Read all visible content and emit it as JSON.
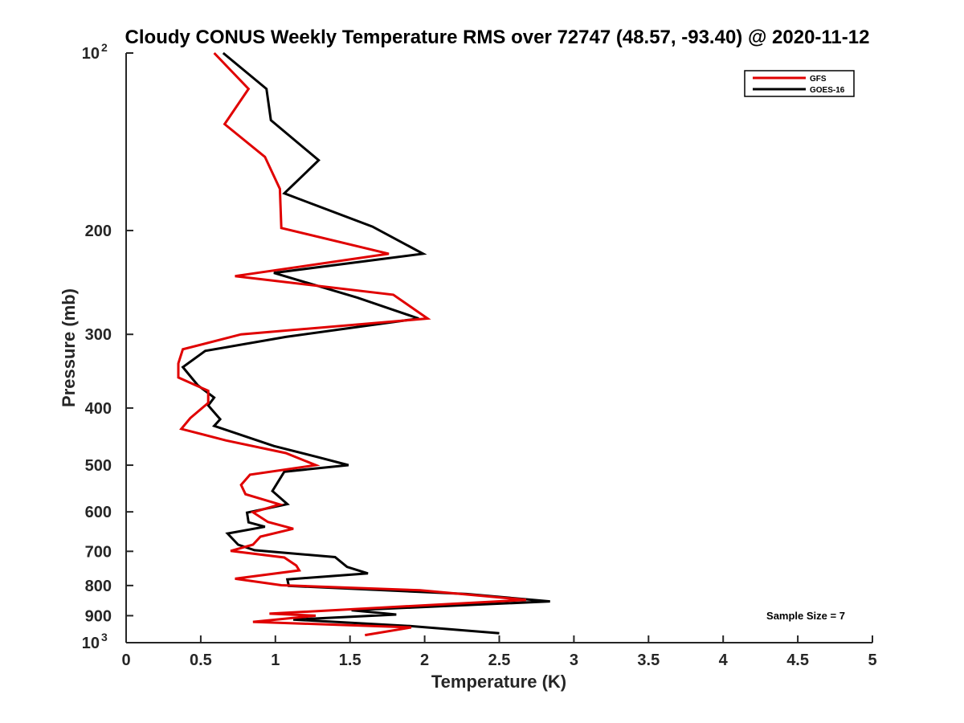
{
  "chart_data": {
    "type": "line",
    "title": "Cloudy CONUS Weekly Temperature RMS over 72747 (48.57, -93.40) @ 2020-11-12",
    "xlabel": "Temperature (K)",
    "ylabel": "Pressure (mb)",
    "xlim": [
      0,
      5
    ],
    "ylim": [
      100,
      1000
    ],
    "y_scale": "log",
    "y_reversed": true,
    "grid": false,
    "legend_position": "top-right",
    "annotation": "Sample Size = 7",
    "x_ticks": [
      "0",
      "0.5",
      "1",
      "1.5",
      "2",
      "2.5",
      "3",
      "3.5",
      "4",
      "4.5",
      "5"
    ],
    "y_ticks": [
      {
        "value": 100,
        "base": "10",
        "exp": "2"
      },
      {
        "value": 200,
        "label": "200"
      },
      {
        "value": 300,
        "label": "300"
      },
      {
        "value": 400,
        "label": "400"
      },
      {
        "value": 500,
        "label": "500"
      },
      {
        "value": 600,
        "label": "600"
      },
      {
        "value": 700,
        "label": "700"
      },
      {
        "value": 800,
        "label": "800"
      },
      {
        "value": 900,
        "label": "900"
      },
      {
        "value": 1000,
        "base": "10",
        "exp": "3"
      }
    ],
    "series": [
      {
        "name": "GFS",
        "color": "#e00000",
        "points": [
          [
            0.59,
            100
          ],
          [
            0.82,
            115
          ],
          [
            0.66,
            132
          ],
          [
            0.93,
            150
          ],
          [
            1.03,
            170
          ],
          [
            1.04,
            198
          ],
          [
            1.76,
            219
          ],
          [
            0.73,
            239
          ],
          [
            1.79,
            257
          ],
          [
            2.02,
            282
          ],
          [
            0.77,
            300
          ],
          [
            0.38,
            318
          ],
          [
            0.35,
            336
          ],
          [
            0.35,
            355
          ],
          [
            0.55,
            374
          ],
          [
            0.55,
            392
          ],
          [
            0.43,
            416
          ],
          [
            0.37,
            434
          ],
          [
            0.67,
            454
          ],
          [
            1.07,
            477
          ],
          [
            1.27,
            500
          ],
          [
            0.83,
            519
          ],
          [
            0.77,
            540
          ],
          [
            0.8,
            560
          ],
          [
            1.03,
            583
          ],
          [
            0.85,
            601
          ],
          [
            0.95,
            624
          ],
          [
            1.12,
            641
          ],
          [
            0.9,
            661
          ],
          [
            0.85,
            682
          ],
          [
            0.7,
            699
          ],
          [
            1.06,
            717
          ],
          [
            1.14,
            740
          ],
          [
            1.16,
            754
          ],
          [
            0.73,
            779
          ],
          [
            1.04,
            799
          ],
          [
            1.97,
            815
          ],
          [
            2.68,
            846
          ],
          [
            0.96,
            893
          ],
          [
            1.27,
            900
          ],
          [
            0.85,
            922
          ],
          [
            1.91,
            942
          ],
          [
            1.6,
            971
          ]
        ]
      },
      {
        "name": "GOES-16",
        "color": "#000000",
        "points": [
          [
            0.65,
            100
          ],
          [
            0.94,
            115
          ],
          [
            0.97,
            130
          ],
          [
            1.29,
            152
          ],
          [
            1.06,
            173
          ],
          [
            1.65,
            197
          ],
          [
            1.99,
            219
          ],
          [
            0.99,
            236
          ],
          [
            1.55,
            260
          ],
          [
            1.96,
            282
          ],
          [
            1.07,
            303
          ],
          [
            0.53,
            320
          ],
          [
            0.38,
            341
          ],
          [
            0.48,
            366
          ],
          [
            0.59,
            384
          ],
          [
            0.55,
            396
          ],
          [
            0.63,
            418
          ],
          [
            0.59,
            429
          ],
          [
            0.99,
            464
          ],
          [
            1.29,
            485
          ],
          [
            1.49,
            500
          ],
          [
            1.06,
            513
          ],
          [
            0.98,
            553
          ],
          [
            1.08,
            582
          ],
          [
            0.81,
            602
          ],
          [
            0.82,
            625
          ],
          [
            0.93,
            636
          ],
          [
            0.68,
            653
          ],
          [
            0.75,
            682
          ],
          [
            0.86,
            697
          ],
          [
            1.4,
            716
          ],
          [
            1.48,
            744
          ],
          [
            1.62,
            763
          ],
          [
            1.08,
            781
          ],
          [
            1.09,
            801
          ],
          [
            2.28,
            827
          ],
          [
            2.84,
            851
          ],
          [
            1.51,
            881
          ],
          [
            1.81,
            896
          ],
          [
            1.12,
            914
          ],
          [
            1.9,
            937
          ],
          [
            2.5,
            964
          ]
        ]
      }
    ]
  }
}
